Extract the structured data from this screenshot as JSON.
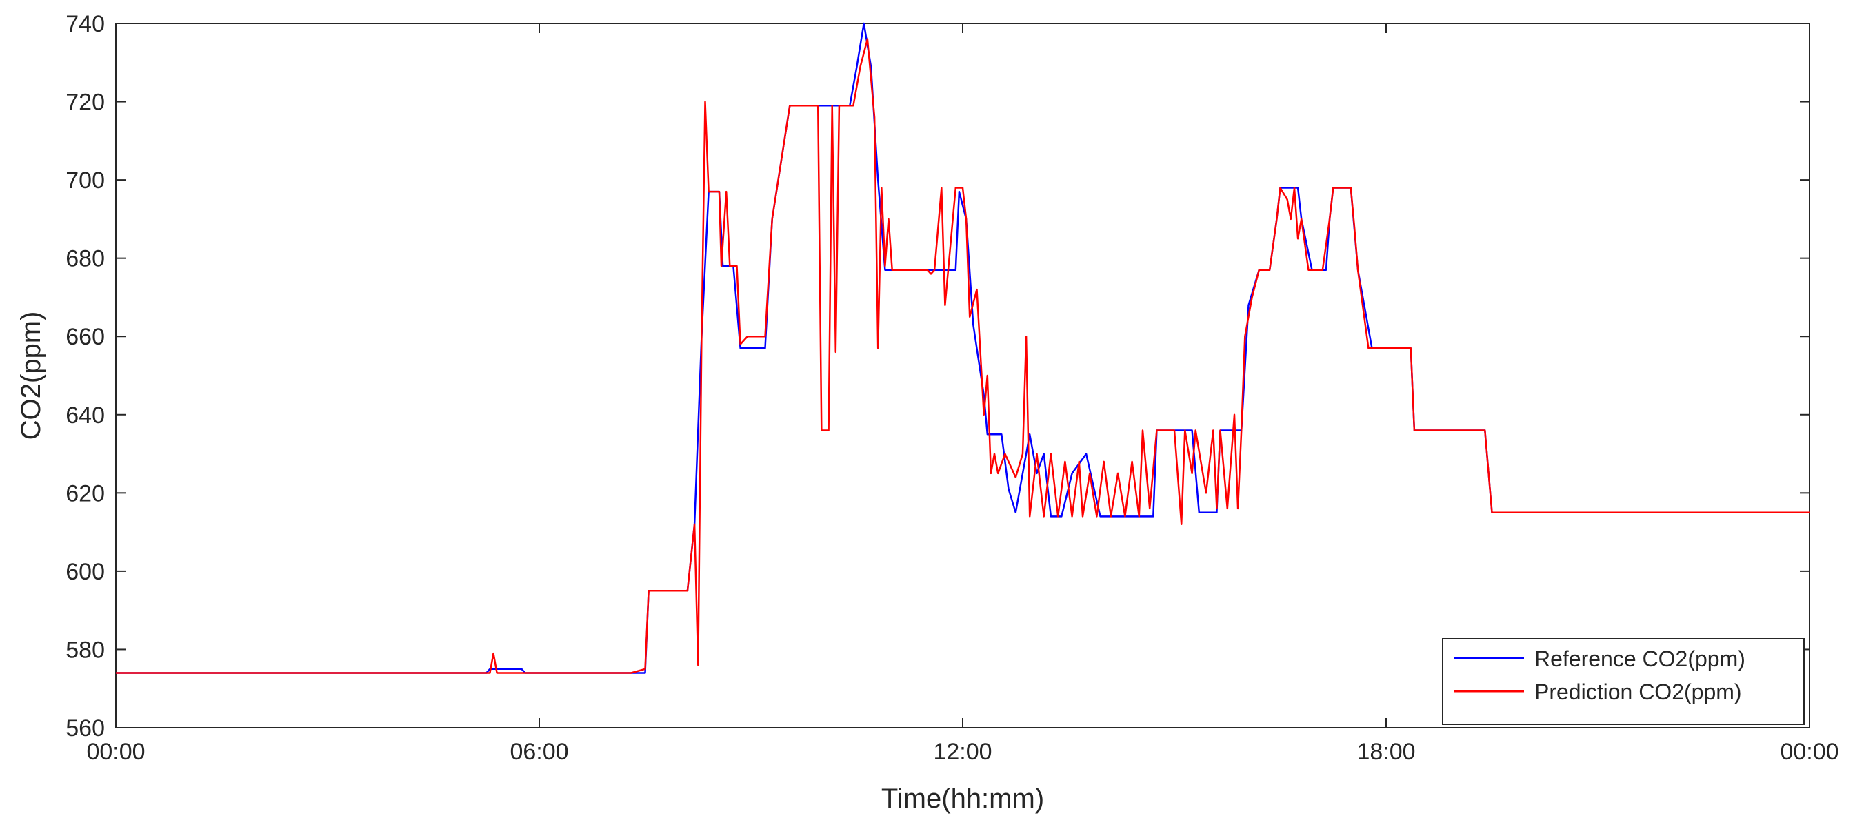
{
  "chart_data": {
    "type": "line",
    "xlabel": "Time(hh:mm)",
    "ylabel": "CO2(ppm)",
    "xlim": [
      0,
      24
    ],
    "ylim": [
      560,
      740
    ],
    "x_tick_labels": [
      "00:00",
      "06:00",
      "12:00",
      "18:00",
      "00:00"
    ],
    "x_tick_hours": [
      0,
      6,
      12,
      18,
      24
    ],
    "y_ticks": [
      560,
      580,
      600,
      620,
      640,
      660,
      680,
      700,
      720,
      740
    ],
    "legend_position": "bottom-right",
    "grid": false,
    "series": [
      {
        "name": "Reference CO2(ppm)",
        "color": "#0000ff",
        "points": [
          [
            0,
            574
          ],
          [
            5.25,
            574
          ],
          [
            5.3,
            575
          ],
          [
            5.75,
            575
          ],
          [
            5.8,
            574
          ],
          [
            7.25,
            574
          ],
          [
            7.5,
            574
          ],
          [
            7.55,
            595
          ],
          [
            8.1,
            595
          ],
          [
            8.2,
            612
          ],
          [
            8.3,
            660
          ],
          [
            8.4,
            697
          ],
          [
            8.55,
            697
          ],
          [
            8.6,
            678
          ],
          [
            8.75,
            678
          ],
          [
            8.85,
            657
          ],
          [
            9.2,
            657
          ],
          [
            9.3,
            690
          ],
          [
            9.55,
            719
          ],
          [
            10.4,
            719
          ],
          [
            10.5,
            729
          ],
          [
            10.6,
            740
          ],
          [
            10.7,
            729
          ],
          [
            10.8,
            700
          ],
          [
            10.9,
            677
          ],
          [
            11.9,
            677
          ],
          [
            11.95,
            697
          ],
          [
            12.05,
            690
          ],
          [
            12.15,
            663
          ],
          [
            12.3,
            645
          ],
          [
            12.35,
            635
          ],
          [
            12.55,
            635
          ],
          [
            12.65,
            621
          ],
          [
            12.75,
            615
          ],
          [
            12.85,
            625
          ],
          [
            12.95,
            635
          ],
          [
            13.05,
            625
          ],
          [
            13.15,
            630
          ],
          [
            13.25,
            614
          ],
          [
            13.4,
            614
          ],
          [
            13.55,
            625
          ],
          [
            13.75,
            630
          ],
          [
            13.95,
            614
          ],
          [
            14.7,
            614
          ],
          [
            14.75,
            636
          ],
          [
            15.25,
            636
          ],
          [
            15.35,
            615
          ],
          [
            15.6,
            615
          ],
          [
            15.65,
            636
          ],
          [
            15.95,
            636
          ],
          [
            16.05,
            668
          ],
          [
            16.2,
            677
          ],
          [
            16.35,
            677
          ],
          [
            16.45,
            690
          ],
          [
            16.5,
            698
          ],
          [
            16.75,
            698
          ],
          [
            16.8,
            690
          ],
          [
            16.95,
            677
          ],
          [
            17.15,
            677
          ],
          [
            17.2,
            690
          ],
          [
            17.25,
            698
          ],
          [
            17.5,
            698
          ],
          [
            17.6,
            677
          ],
          [
            17.8,
            657
          ],
          [
            18.35,
            657
          ],
          [
            18.4,
            636
          ],
          [
            19.4,
            636
          ],
          [
            19.5,
            615
          ],
          [
            24,
            615
          ]
        ]
      },
      {
        "name": "Prediction CO2(ppm)",
        "color": "#ff0000",
        "points": [
          [
            0,
            574
          ],
          [
            5.3,
            574
          ],
          [
            5.35,
            579
          ],
          [
            5.4,
            574
          ],
          [
            7.3,
            574
          ],
          [
            7.5,
            575
          ],
          [
            7.55,
            595
          ],
          [
            8.1,
            595
          ],
          [
            8.2,
            612
          ],
          [
            8.25,
            576
          ],
          [
            8.3,
            660
          ],
          [
            8.35,
            720
          ],
          [
            8.4,
            697
          ],
          [
            8.55,
            697
          ],
          [
            8.58,
            678
          ],
          [
            8.65,
            697
          ],
          [
            8.7,
            678
          ],
          [
            8.8,
            678
          ],
          [
            8.85,
            658
          ],
          [
            8.95,
            660
          ],
          [
            9.2,
            660
          ],
          [
            9.3,
            690
          ],
          [
            9.55,
            719
          ],
          [
            9.95,
            719
          ],
          [
            10.0,
            636
          ],
          [
            10.1,
            636
          ],
          [
            10.15,
            719
          ],
          [
            10.2,
            656
          ],
          [
            10.25,
            719
          ],
          [
            10.45,
            719
          ],
          [
            10.55,
            729
          ],
          [
            10.65,
            736
          ],
          [
            10.75,
            716
          ],
          [
            10.8,
            657
          ],
          [
            10.85,
            698
          ],
          [
            10.9,
            678
          ],
          [
            10.95,
            690
          ],
          [
            11.0,
            677
          ],
          [
            11.5,
            677
          ],
          [
            11.55,
            676
          ],
          [
            11.6,
            677
          ],
          [
            11.7,
            698
          ],
          [
            11.75,
            668
          ],
          [
            11.8,
            678
          ],
          [
            11.9,
            698
          ],
          [
            12.0,
            698
          ],
          [
            12.05,
            690
          ],
          [
            12.1,
            665
          ],
          [
            12.2,
            672
          ],
          [
            12.3,
            640
          ],
          [
            12.35,
            650
          ],
          [
            12.4,
            625
          ],
          [
            12.45,
            630
          ],
          [
            12.5,
            625
          ],
          [
            12.6,
            630
          ],
          [
            12.65,
            628
          ],
          [
            12.75,
            624
          ],
          [
            12.85,
            630
          ],
          [
            12.9,
            660
          ],
          [
            12.95,
            614
          ],
          [
            13.05,
            630
          ],
          [
            13.15,
            614
          ],
          [
            13.25,
            630
          ],
          [
            13.35,
            614
          ],
          [
            13.45,
            628
          ],
          [
            13.55,
            614
          ],
          [
            13.65,
            628
          ],
          [
            13.7,
            614
          ],
          [
            13.8,
            625
          ],
          [
            13.9,
            614
          ],
          [
            14.0,
            628
          ],
          [
            14.1,
            614
          ],
          [
            14.2,
            625
          ],
          [
            14.3,
            614
          ],
          [
            14.4,
            628
          ],
          [
            14.5,
            614
          ],
          [
            14.55,
            636
          ],
          [
            14.65,
            616
          ],
          [
            14.75,
            636
          ],
          [
            15.0,
            636
          ],
          [
            15.1,
            612
          ],
          [
            15.15,
            636
          ],
          [
            15.25,
            625
          ],
          [
            15.3,
            636
          ],
          [
            15.45,
            620
          ],
          [
            15.55,
            636
          ],
          [
            15.6,
            616
          ],
          [
            15.65,
            636
          ],
          [
            15.75,
            616
          ],
          [
            15.85,
            640
          ],
          [
            15.9,
            616
          ],
          [
            15.95,
            636
          ],
          [
            16.0,
            660
          ],
          [
            16.1,
            670
          ],
          [
            16.2,
            677
          ],
          [
            16.35,
            677
          ],
          [
            16.45,
            690
          ],
          [
            16.5,
            698
          ],
          [
            16.6,
            695
          ],
          [
            16.65,
            690
          ],
          [
            16.7,
            698
          ],
          [
            16.75,
            685
          ],
          [
            16.8,
            690
          ],
          [
            16.9,
            677
          ],
          [
            17.1,
            677
          ],
          [
            17.2,
            690
          ],
          [
            17.25,
            698
          ],
          [
            17.5,
            698
          ],
          [
            17.55,
            688
          ],
          [
            17.6,
            677
          ],
          [
            17.75,
            657
          ],
          [
            18.35,
            657
          ],
          [
            18.4,
            636
          ],
          [
            19.4,
            636
          ],
          [
            19.5,
            615
          ],
          [
            24,
            615
          ]
        ]
      }
    ]
  }
}
